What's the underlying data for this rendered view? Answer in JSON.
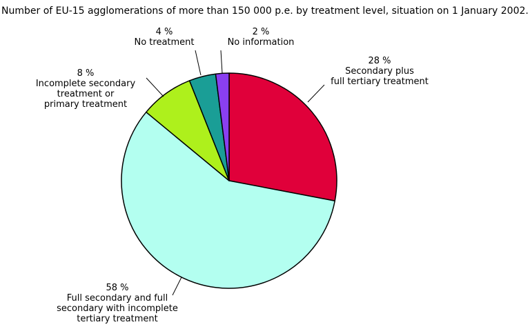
{
  "chart_data": {
    "type": "pie",
    "title": "Number of EU-15 agglomerations of more than 150 000 p.e. by treatment level, situation on 1 January 2002.",
    "slices": [
      {
        "value": 28,
        "percent_label": "28 %",
        "label_lines": [
          "Secondary plus",
          "full tertiary treatment"
        ],
        "color": "#e0003a"
      },
      {
        "value": 58,
        "percent_label": "58 %",
        "label_lines": [
          "Full secondary and full",
          "secondary with incomplete",
          "tertiary treatment"
        ],
        "color": "#b3fff0"
      },
      {
        "value": 8,
        "percent_label": "8 %",
        "label_lines": [
          "Incomplete secondary",
          "treatment or",
          "primary treatment"
        ],
        "color": "#aef01c"
      },
      {
        "value": 4,
        "percent_label": "4 %",
        "label_lines": [
          "No treatment"
        ],
        "color": "#1a9e96"
      },
      {
        "value": 2,
        "percent_label": "2 %",
        "label_lines": [
          "No information"
        ],
        "color": "#8a3ff0"
      }
    ],
    "start": "12 o'clock",
    "direction": "clockwise",
    "legend": "none"
  }
}
